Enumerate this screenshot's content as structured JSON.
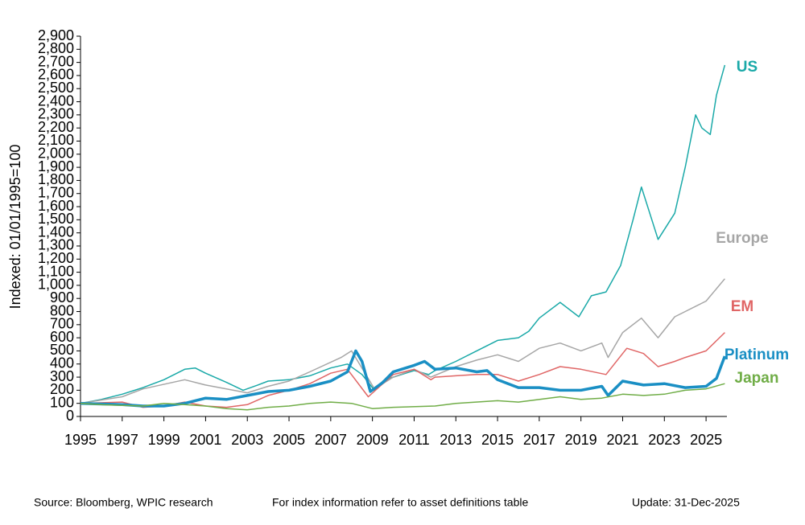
{
  "chart_data": {
    "type": "line",
    "y_label": "Indexed: 01/01/1995=100",
    "source": "Source: Bloomberg, WPIC research",
    "note": "For index information refer to asset definitions table",
    "update": "Update: 31-Dec-2025",
    "xlim": [
      1995,
      2026
    ],
    "xticks": [
      1995,
      1997,
      1999,
      2001,
      2003,
      2005,
      2007,
      2009,
      2011,
      2013,
      2015,
      2017,
      2019,
      2021,
      2023,
      2025
    ],
    "ylim": [
      0,
      2900
    ],
    "yticks": [
      0,
      100,
      200,
      300,
      400,
      500,
      600,
      700,
      800,
      900,
      {
        "value": 1000,
        "label": "1,000"
      },
      {
        "value": 1100,
        "label": "1,100"
      },
      {
        "value": 1200,
        "label": "1,200"
      },
      {
        "value": 1300,
        "label": "1,300"
      },
      {
        "value": 1400,
        "label": "1,400"
      },
      {
        "value": 1500,
        "label": "1,500"
      },
      {
        "value": 1600,
        "label": "1,600"
      },
      {
        "value": 1700,
        "label": "1,700"
      },
      {
        "value": 1800,
        "label": "1,800"
      },
      {
        "value": 1900,
        "label": "1,900"
      },
      {
        "value": 2000,
        "label": "2,000"
      },
      {
        "value": 2100,
        "label": "2,100"
      },
      {
        "value": 2200,
        "label": "2,200"
      },
      {
        "value": 2300,
        "label": "2,300"
      },
      {
        "value": 2400,
        "label": "2,400"
      },
      {
        "value": 2500,
        "label": "2,500"
      },
      {
        "value": 2600,
        "label": "2,600"
      },
      {
        "value": 2700,
        "label": "2,700"
      },
      {
        "value": 2800,
        "label": "2,800"
      },
      {
        "value": 2900,
        "label": "2,900"
      }
    ],
    "series": [
      {
        "name": "US",
        "color": "#1aa9a8",
        "line_width": 1.5,
        "x": [
          1995,
          1996,
          1997,
          1998,
          1999,
          2000,
          2000.5,
          2001,
          2002,
          2002.8,
          2003.5,
          2004,
          2005,
          2006,
          2007,
          2007.8,
          2008.5,
          2009.1,
          2009.5,
          2010,
          2011,
          2011.7,
          2012,
          2013,
          2014,
          2015,
          2016,
          2016.5,
          2017,
          2018,
          2018.9,
          2019.5,
          2020.2,
          2020.9,
          2021.5,
          2021.9,
          2022.7,
          2023.5,
          2024,
          2024.5,
          2024.8,
          2025.2,
          2025.5,
          2025.9
        ],
        "values": [
          100,
          130,
          170,
          220,
          280,
          360,
          370,
          330,
          260,
          200,
          240,
          270,
          280,
          310,
          370,
          400,
          320,
          200,
          270,
          300,
          350,
          320,
          350,
          420,
          500,
          580,
          600,
          650,
          750,
          870,
          760,
          920,
          950,
          1150,
          1500,
          1750,
          1350,
          1550,
          1900,
          2300,
          2200,
          2150,
          2450,
          2680
        ]
      },
      {
        "name": "Europe",
        "color": "#a6a6a6",
        "line_width": 1.5,
        "x": [
          1995,
          1997,
          1998,
          2000,
          2001,
          2003,
          2004,
          2005,
          2006,
          2007.5,
          2008,
          2009.1,
          2010,
          2011,
          2011.8,
          2013,
          2014,
          2015,
          2016,
          2017,
          2018,
          2019,
          2020,
          2020.3,
          2021,
          2021.9,
          2022.7,
          2023.5,
          2024,
          2025,
          2025.9
        ],
        "values": [
          100,
          150,
          210,
          280,
          240,
          180,
          230,
          270,
          340,
          450,
          500,
          210,
          300,
          360,
          300,
          380,
          430,
          470,
          420,
          520,
          560,
          500,
          560,
          450,
          640,
          750,
          600,
          760,
          800,
          880,
          1050
        ]
      },
      {
        "name": "EM",
        "color": "#e06666",
        "line_width": 1.5,
        "x": [
          1995,
          1997,
          1998,
          1999,
          2000,
          2001,
          2002,
          2003,
          2004,
          2005,
          2006,
          2007,
          2007.8,
          2008.8,
          2009.5,
          2010,
          2011,
          2011.8,
          2012,
          2013,
          2014,
          2015,
          2016,
          2017,
          2018,
          2019,
          2020.2,
          2021,
          2021.2,
          2022,
          2022.7,
          2023.5,
          2024,
          2025,
          2025.9
        ],
        "values": [
          100,
          110,
          70,
          80,
          110,
          80,
          70,
          90,
          160,
          200,
          250,
          330,
          360,
          150,
          250,
          320,
          360,
          280,
          300,
          310,
          320,
          320,
          270,
          320,
          380,
          360,
          320,
          480,
          520,
          480,
          380,
          420,
          450,
          500,
          640
        ]
      },
      {
        "name": "Platinum",
        "color": "#1a8fc4",
        "line_width": 3.5,
        "x": [
          1995,
          1996,
          1997,
          1998,
          1999,
          2000,
          2001,
          2002,
          2003,
          2004,
          2005,
          2006,
          2007,
          2007.8,
          2008.2,
          2008.5,
          2008.9,
          2009.5,
          2010,
          2011,
          2011.5,
          2012,
          2013,
          2014,
          2014.5,
          2015,
          2016,
          2017,
          2018,
          2019,
          2020,
          2020.3,
          2021,
          2022,
          2023,
          2024,
          2025,
          2025.5,
          2025.9
        ],
        "values": [
          100,
          95,
          90,
          80,
          80,
          100,
          140,
          130,
          160,
          190,
          200,
          230,
          270,
          340,
          500,
          420,
          190,
          260,
          340,
          390,
          420,
          360,
          370,
          340,
          350,
          280,
          220,
          220,
          200,
          200,
          230,
          160,
          270,
          240,
          250,
          220,
          230,
          290,
          460
        ]
      },
      {
        "name": "Japan",
        "color": "#70ad47",
        "line_width": 1.5,
        "x": [
          1995,
          1996,
          1998,
          1999,
          2000,
          2001,
          2002,
          2003,
          2004,
          2005,
          2006,
          2007,
          2008,
          2009,
          2010,
          2012,
          2013,
          2015,
          2016,
          2018,
          2019,
          2020,
          2021,
          2022,
          2023,
          2024,
          2025,
          2025.9
        ],
        "values": [
          100,
          90,
          80,
          100,
          90,
          80,
          60,
          50,
          70,
          80,
          100,
          110,
          100,
          60,
          70,
          80,
          100,
          120,
          110,
          150,
          130,
          140,
          170,
          160,
          170,
          200,
          210,
          250
        ]
      }
    ]
  }
}
